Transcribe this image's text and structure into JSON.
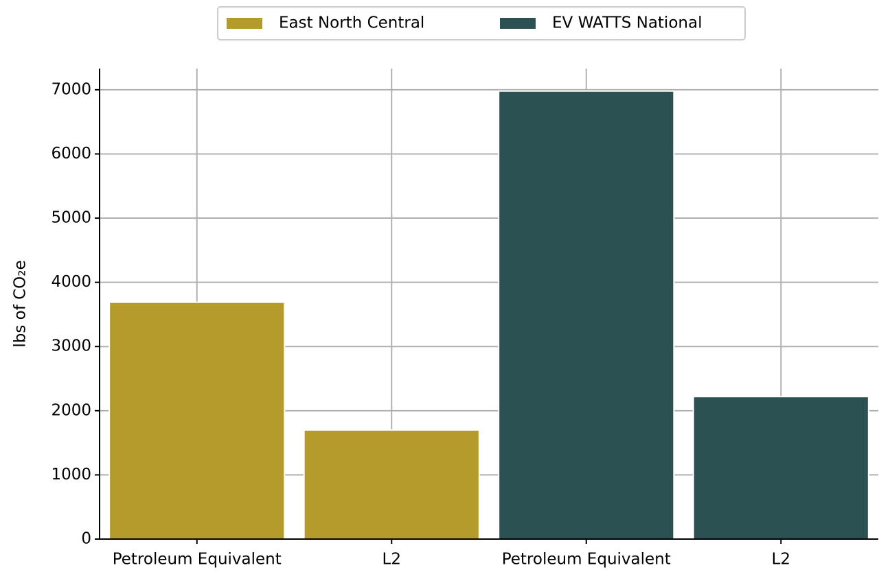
{
  "chart_data": {
    "type": "bar",
    "categories": [
      "Petroleum Equivalent",
      "L2",
      "Petroleum Equivalent",
      "L2"
    ],
    "series": [
      {
        "name": "East North Central",
        "color": "#b59a2c",
        "values": [
          3690,
          1700,
          null,
          null
        ]
      },
      {
        "name": "EV WATTS National",
        "color": "#2c5152",
        "values": [
          null,
          null,
          6980,
          2220
        ]
      }
    ],
    "y_label": "lbs of CO₂e",
    "ylim": [
      0,
      7330
    ],
    "yticks": [
      0,
      1000,
      2000,
      3000,
      4000,
      5000,
      6000,
      7000
    ],
    "grid": true,
    "legend": "top"
  }
}
